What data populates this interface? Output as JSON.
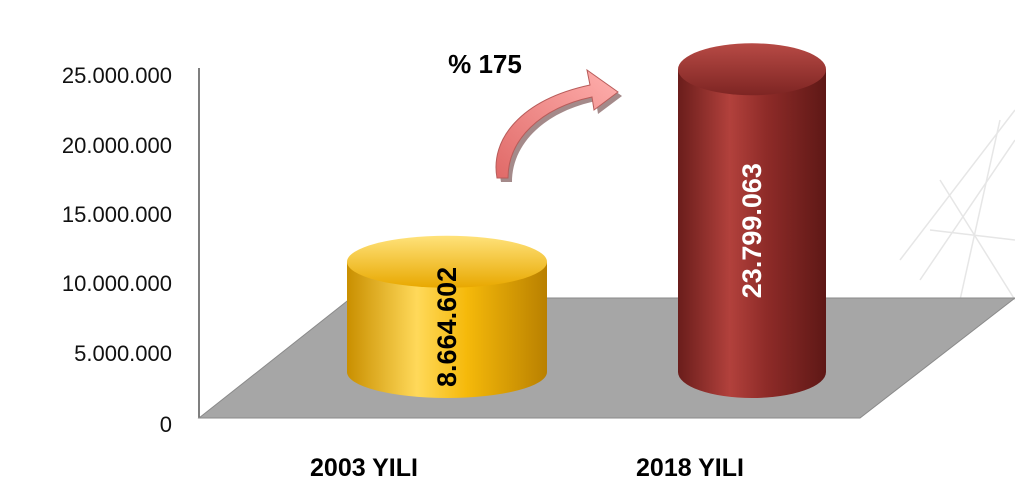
{
  "chart_data": {
    "type": "bar",
    "categories": [
      "2003 YILI",
      "2018 YILI"
    ],
    "values": [
      8664602,
      23799063
    ],
    "value_labels": [
      "8.664.602",
      "23.799.063"
    ],
    "y_ticks": [
      "0",
      "5.000.000",
      "10.000.000",
      "15.000.000",
      "20.000.000",
      "25.000.000"
    ],
    "ylim": [
      0,
      25000000
    ],
    "growth_label": "% 175",
    "bar_colors": [
      "#f2b70c",
      "#8e2b28"
    ],
    "label_colors": [
      "#000000",
      "#ffffff"
    ],
    "floor_color": "#a6a6a6",
    "arrow_color": "#f08c8a",
    "grid": false,
    "title": "",
    "xlabel": "",
    "ylabel": ""
  }
}
